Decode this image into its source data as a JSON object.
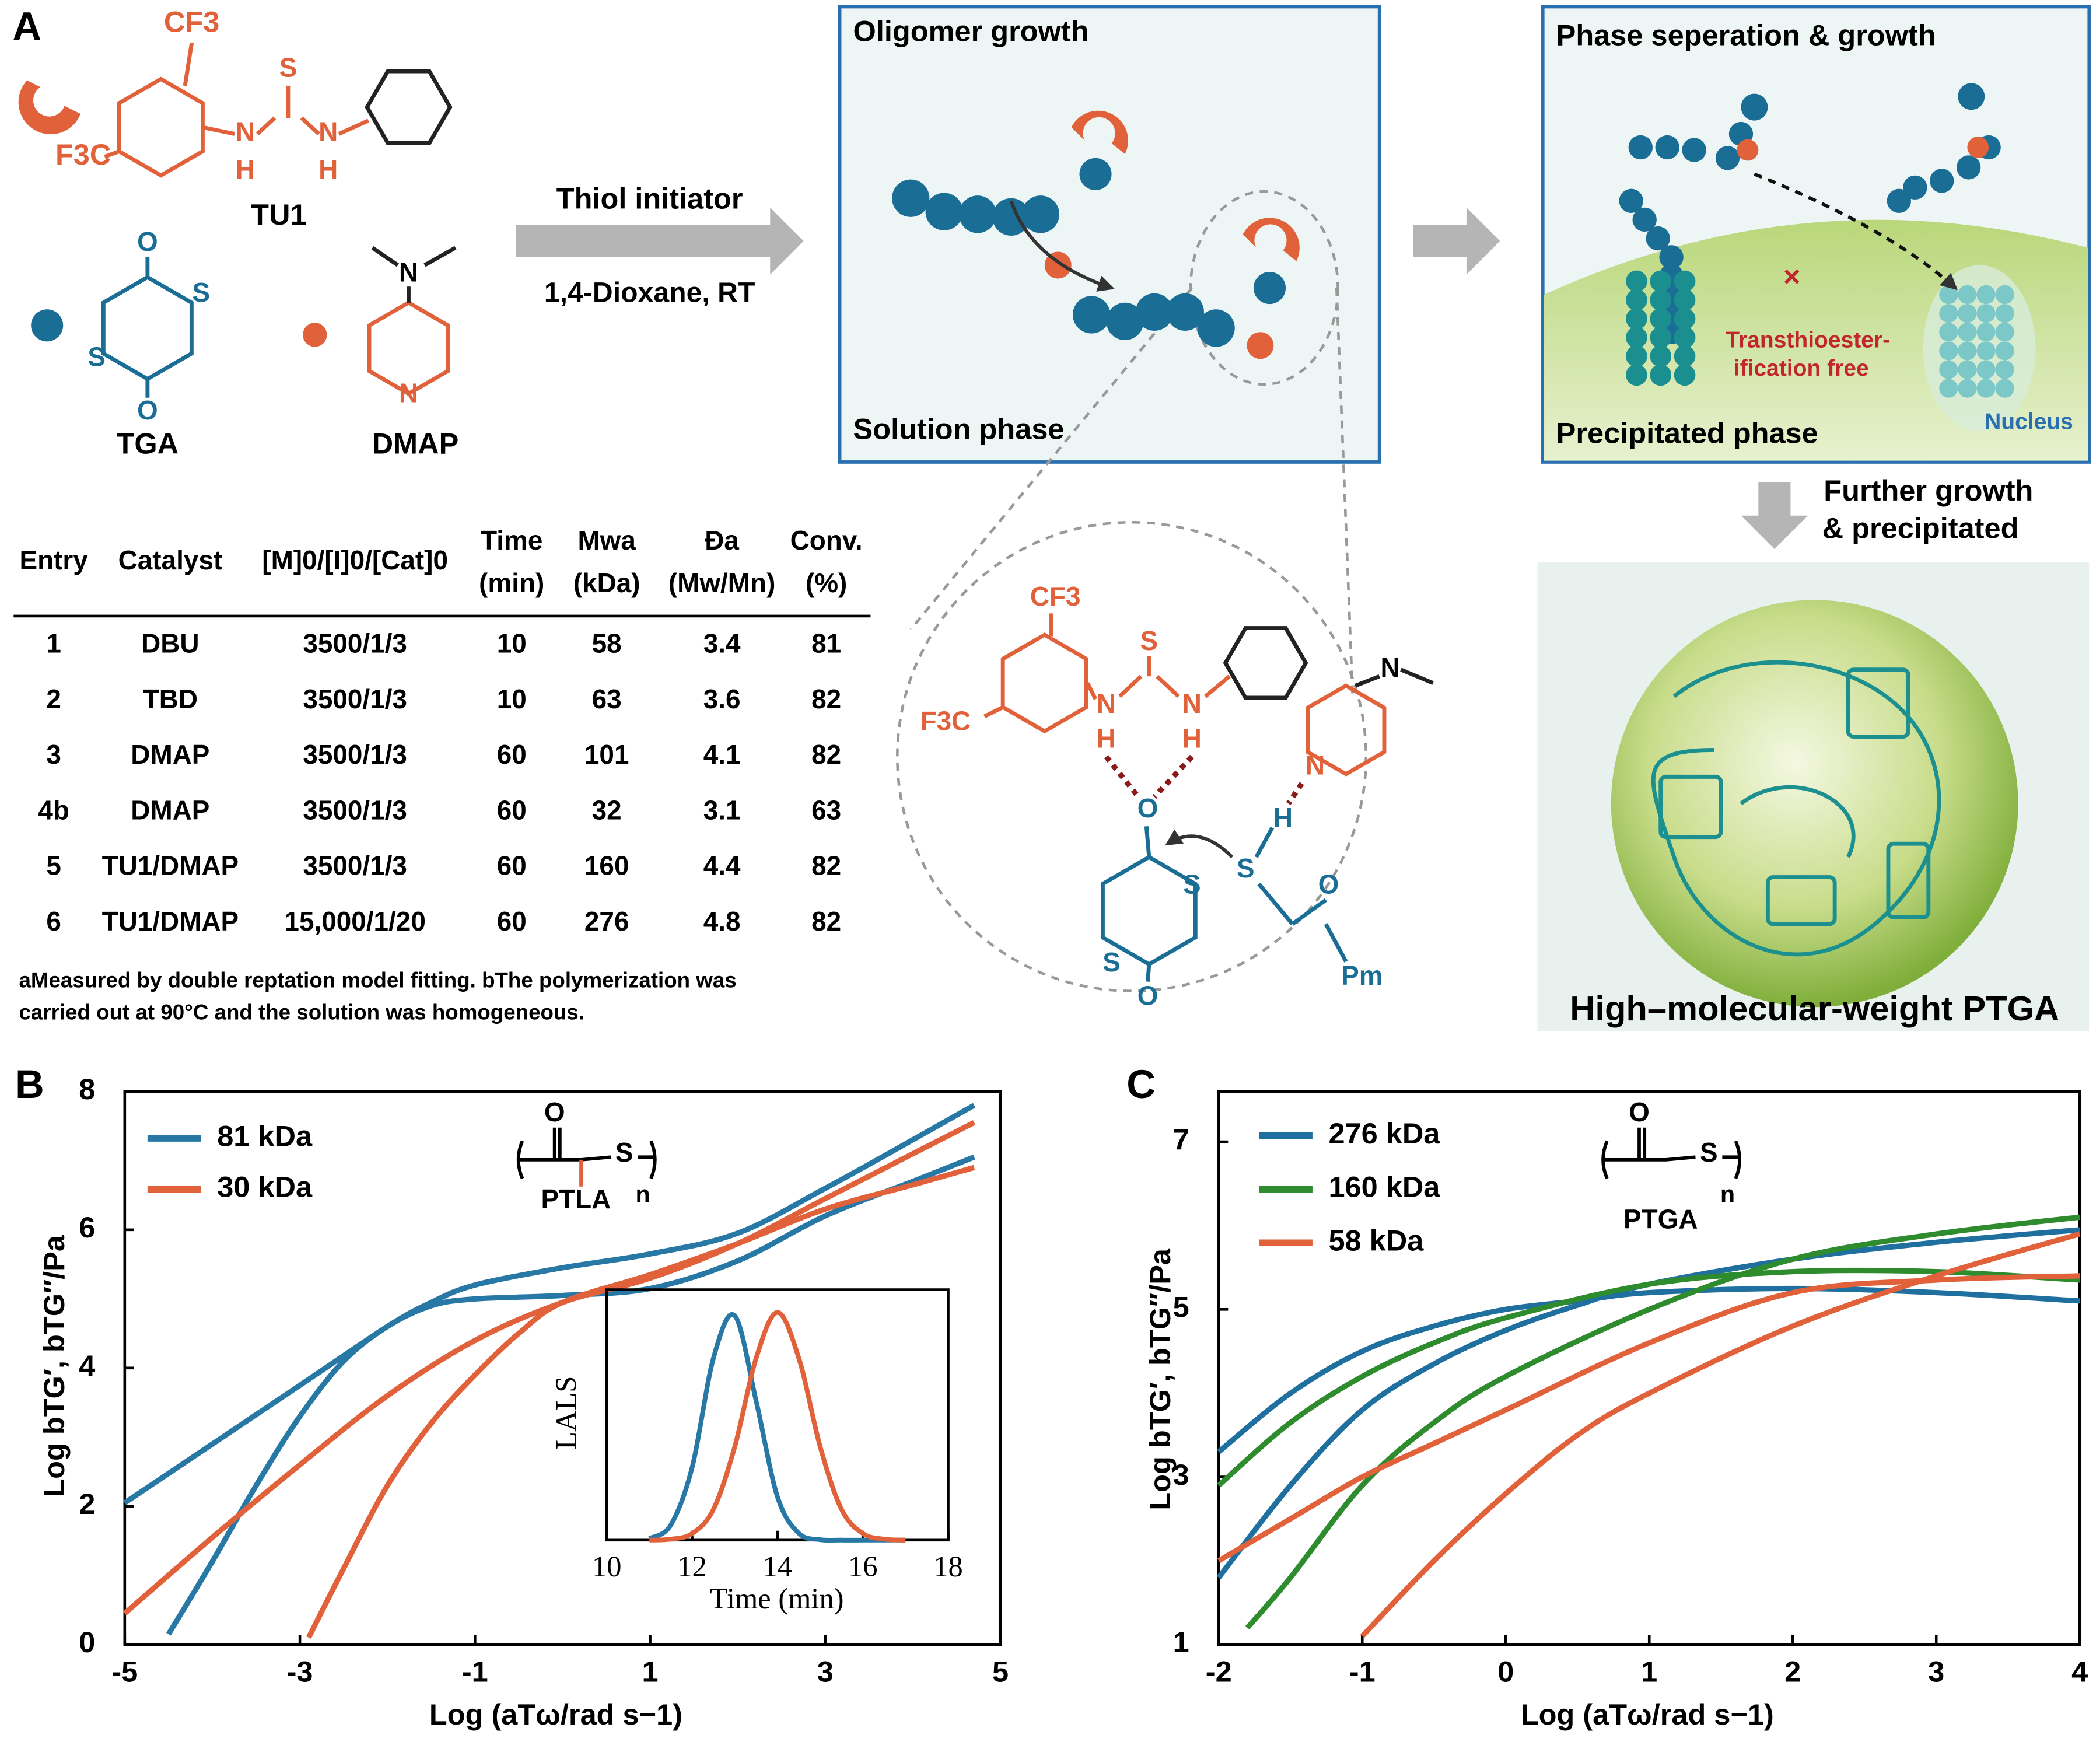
{
  "scheme": {
    "panel": "A",
    "tu1_cf3": "CF3",
    "tu1_f3c": "F3C",
    "tu1_s": "S",
    "tu1_n1": "N",
    "tu1_h1": "H",
    "tu1_n2": "N",
    "tu1_h2": "H",
    "tu1": "TU1",
    "tga_o1": "O",
    "tga_o2": "O",
    "tga_s1": "S",
    "tga_s2": "S",
    "tga": "TGA",
    "dmap_n1": "N",
    "dmap_n2": "N",
    "dmap": "DMAP",
    "arrow_top": "Thiol initiator",
    "arrow_bottom": "1,4-Dioxane, RT",
    "box1_title": "Oligomer growth",
    "box1_bottom": "Solution phase",
    "box2_title": "Phase seperation & growth",
    "red1": "Transthioester-",
    "red2": "ification free",
    "box2_bottom": "Precipitated phase",
    "nucleus": "Nucleus",
    "further1": "Further growth",
    "further2": "& precipitated",
    "ptga_title": "High–molecular-weight PTGA",
    "z_cf3": "CF3",
    "z_f3c": "F3C",
    "z_s1": "S",
    "z_n1": "N",
    "z_h1": "H",
    "z_n2": "N",
    "z_h2": "H",
    "z_n3": "N",
    "z_n4": "N",
    "z_h3": "H",
    "z_s2": "S",
    "z_o1": "O",
    "z_s3": "S",
    "z_s4": "S",
    "z_o2": "O",
    "z_o3": "O",
    "z_pm": "Pm"
  },
  "table": {
    "header_top": [
      "Time",
      "Mwa",
      "Ða",
      "Conv."
    ],
    "header": [
      "Entry",
      "Catalyst",
      "[M]0/[I]0/[Cat]0",
      "(min)",
      "(kDa)",
      "(Mw/Mn)",
      "(%)"
    ],
    "rows": [
      [
        "1",
        "DBU",
        "3500/1/3",
        "10",
        "58",
        "3.4",
        "81"
      ],
      [
        "2",
        "TBD",
        "3500/1/3",
        "10",
        "63",
        "3.6",
        "82"
      ],
      [
        "3",
        "DMAP",
        "3500/1/3",
        "60",
        "101",
        "4.1",
        "82"
      ],
      [
        "4b",
        "DMAP",
        "3500/1/3",
        "60",
        "32",
        "3.1",
        "63"
      ],
      [
        "5",
        "TU1/DMAP",
        "3500/1/3",
        "60",
        "160",
        "4.4",
        "82"
      ],
      [
        "6",
        "TU1/DMAP",
        "15,000/1/20",
        "60",
        "276",
        "4.8",
        "82"
      ]
    ],
    "footnote": [
      "aMeasured by double reptation model fitting. bThe polymerization was",
      "carried out at 90°C and the solution was homogeneous."
    ]
  },
  "chart_data": [
    {
      "type": "line",
      "panel": "B",
      "ylabel": "Log bTG′, bTG″/Pa",
      "xlabel": "Log (aTω/rad s−1)",
      "xlim": [
        -5,
        5
      ],
      "xticks": [
        -5,
        -3,
        -1,
        1,
        3,
        5
      ],
      "ylim": [
        0,
        8
      ],
      "yticks": [
        0,
        2,
        4,
        6,
        8
      ],
      "legend": "upper left",
      "structure": {
        "o": "O",
        "s": "S",
        "n": "n",
        "name": "PTLA"
      },
      "series": [
        {
          "name": "81 kDa",
          "color": "#2878a6",
          "loss": {
            "x": [
              -5,
              -4,
              -3,
              -2,
              -1.5,
              -1,
              0,
              1,
              2,
              3,
              4,
              4.7
            ],
            "values": [
              2.05,
              2.9,
              3.75,
              4.6,
              4.95,
              5.2,
              5.45,
              5.65,
              5.95,
              6.6,
              7.3,
              7.8
            ]
          },
          "storage": {
            "x": [
              -4.5,
              -4,
              -3.5,
              -3,
              -2.5,
              -2,
              -1.5,
              -1,
              0,
              1,
              2,
              3,
              4,
              4.7
            ],
            "values": [
              0.15,
              1.2,
              2.3,
              3.3,
              4.1,
              4.6,
              4.9,
              5.0,
              5.05,
              5.15,
              5.55,
              6.2,
              6.7,
              7.05
            ]
          }
        },
        {
          "name": "30 kDa",
          "color": "#e0613a",
          "loss": {
            "x": [
              -5,
              -4,
              -3,
              -2,
              -1,
              0,
              1,
              2,
              3,
              4,
              4.7
            ],
            "values": [
              0.45,
              1.55,
              2.6,
              3.6,
              4.4,
              4.95,
              5.3,
              5.8,
              6.45,
              7.1,
              7.55
            ]
          },
          "storage": {
            "x": [
              -2.9,
              -2.5,
              -2,
              -1.5,
              -1,
              -0.5,
              0,
              1,
              2,
              3,
              4,
              4.7
            ],
            "values": [
              0.1,
              1.1,
              2.3,
              3.2,
              3.9,
              4.5,
              4.95,
              5.35,
              5.8,
              6.3,
              6.65,
              6.9
            ]
          }
        }
      ]
    },
    {
      "type": "line",
      "panel": "C",
      "ylabel": "Log bTG′, bTG″/Pa",
      "xlabel": "Log (aTω/rad s−1)",
      "xlim": [
        -2,
        4
      ],
      "xticks": [
        -2,
        -1,
        0,
        1,
        2,
        3,
        4
      ],
      "ylim": [
        1,
        7.6
      ],
      "yticks": [
        1,
        3,
        5,
        7
      ],
      "legend": "upper left",
      "structure": {
        "o": "O",
        "s": "S",
        "n": "n",
        "name": "PTGA"
      },
      "series": [
        {
          "name": "276 kDa",
          "color": "#1f6f9f",
          "loss": {
            "x": [
              -2,
              -1.5,
              -1,
              -0.5,
              0,
              0.5,
              1,
              2,
              3,
              4
            ],
            "values": [
              3.3,
              4.0,
              4.5,
              4.8,
              5.0,
              5.1,
              5.2,
              5.25,
              5.2,
              5.1
            ]
          },
          "storage": {
            "x": [
              -2,
              -1.5,
              -1,
              -0.5,
              0,
              0.5,
              1,
              2,
              3,
              4
            ],
            "values": [
              1.8,
              2.9,
              3.8,
              4.35,
              4.75,
              5.05,
              5.3,
              5.6,
              5.8,
              5.95
            ]
          }
        },
        {
          "name": "160 kDa",
          "color": "#2e8b2e",
          "loss": {
            "x": [
              -2,
              -1.5,
              -1,
              -0.5,
              0,
              1,
              2,
              3,
              4
            ],
            "values": [
              2.9,
              3.65,
              4.2,
              4.6,
              4.9,
              5.3,
              5.45,
              5.45,
              5.35
            ]
          },
          "storage": {
            "x": [
              -1.8,
              -1.5,
              -1,
              -0.5,
              0,
              1,
              2,
              3,
              4
            ],
            "values": [
              1.2,
              1.8,
              2.9,
              3.65,
              4.2,
              5.0,
              5.6,
              5.9,
              6.1
            ]
          }
        },
        {
          "name": " 58 kDa",
          "color": "#e0613a",
          "loss": {
            "x": [
              -2,
              -1.5,
              -1,
              -0.5,
              0,
              1,
              2,
              3,
              4
            ],
            "values": [
              2.0,
              2.5,
              3.0,
              3.4,
              3.8,
              4.6,
              5.2,
              5.35,
              5.4
            ]
          },
          "storage": {
            "x": [
              -1,
              -0.5,
              0,
              0.5,
              1,
              2,
              3,
              4
            ],
            "values": [
              1.1,
              2.0,
              2.8,
              3.5,
              4.0,
              4.8,
              5.4,
              5.9
            ]
          }
        }
      ]
    },
    {
      "type": "line",
      "ylabel": "LALS",
      "xlabel": "Time (min)",
      "x": [
        11,
        11.5,
        12,
        12.5,
        13,
        13.5,
        14,
        14.5,
        15,
        15.5,
        16,
        16.5,
        17
      ],
      "xlim": [
        10,
        18
      ],
      "xticks": [
        10,
        12,
        14,
        16,
        18
      ],
      "ylim": [
        0,
        1.1
      ],
      "series": [
        {
          "color": "#2878a6",
          "values": [
            0.007,
            0.066,
            0.32,
            0.8,
            0.986,
            0.61,
            0.19,
            0.03,
            0.002,
            0,
            0,
            0,
            0
          ]
        },
        {
          "color": "#e0613a",
          "values": [
            0,
            0.004,
            0.029,
            0.135,
            0.41,
            0.8,
            1,
            0.8,
            0.41,
            0.135,
            0.029,
            0.004,
            0
          ]
        }
      ]
    }
  ]
}
